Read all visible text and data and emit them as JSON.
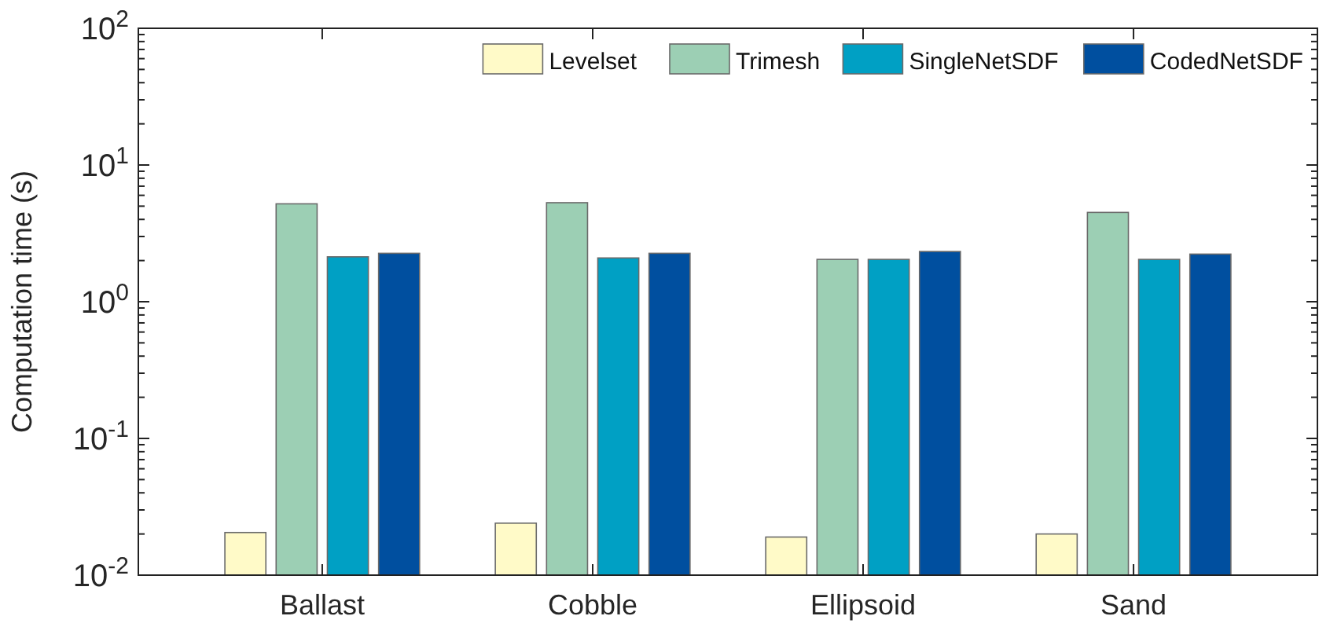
{
  "chart_data": {
    "type": "bar",
    "ylabel": "Computation time (s)",
    "categories": [
      "Ballast",
      "Cobble",
      "Ellipsoid",
      "Sand"
    ],
    "series": [
      {
        "name": "Levelset",
        "color": "#fffac8",
        "values": [
          0.0205,
          0.024,
          0.019,
          0.02
        ]
      },
      {
        "name": "Trimesh",
        "color": "#9ccfb4",
        "values": [
          5.2,
          5.3,
          2.04,
          4.5
        ]
      },
      {
        "name": "SingleNetSDF",
        "color": "#00a0c4",
        "values": [
          2.13,
          2.09,
          2.04,
          2.04
        ]
      },
      {
        "name": "CodedNetSDF",
        "color": "#004f9f",
        "values": [
          2.26,
          2.26,
          2.33,
          2.23
        ]
      }
    ],
    "log": true,
    "ylim": [
      0.01,
      100
    ],
    "yticks": [
      {
        "value": 0.01,
        "label": "10$^{-2}$"
      },
      {
        "value": 0.1,
        "label": "10$^{-1}$"
      },
      {
        "value": 1,
        "label": "10$^{0}$"
      },
      {
        "value": 10,
        "label": "10$^{1}$"
      },
      {
        "value": 100,
        "label": "10$^{2}$"
      }
    ],
    "legend": "top right",
    "grid": false
  }
}
